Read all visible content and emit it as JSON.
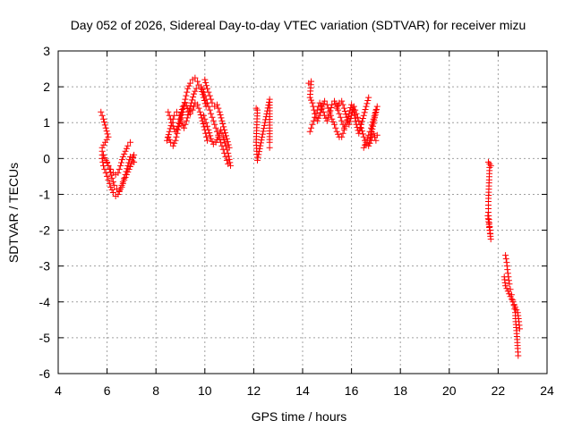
{
  "chart_data": {
    "type": "scatter",
    "title": "Day 052 of 2026, Sidereal Day-to-day VTEC variation (SDTVAR) for receiver mizu",
    "xlabel": "GPS time / hours",
    "ylabel": "SDTVAR / TECUs",
    "xlim": [
      4,
      24
    ],
    "ylim": [
      -6,
      3
    ],
    "xticks": [
      "4",
      "6",
      "8",
      "10",
      "12",
      "14",
      "16",
      "18",
      "20",
      "22",
      "24"
    ],
    "yticks": [
      "3",
      "2",
      "1",
      "0",
      "-1",
      "-2",
      "-3",
      "-4",
      "-5",
      "-6"
    ],
    "grid": true,
    "marker": "+",
    "color": "#ff0000",
    "series": [
      {
        "name": "SDTVAR",
        "segments": [
          [
            [
              5.75,
              1.3
            ],
            [
              5.85,
              1.1
            ],
            [
              5.95,
              0.85
            ],
            [
              6.05,
              0.6
            ],
            [
              5.8,
              0.3
            ],
            [
              5.8,
              0.0
            ],
            [
              5.85,
              -0.2
            ],
            [
              5.95,
              -0.4
            ],
            [
              6.05,
              -0.6
            ],
            [
              6.15,
              -0.8
            ],
            [
              6.25,
              -0.95
            ],
            [
              6.35,
              -1.05
            ],
            [
              6.45,
              -1.0
            ],
            [
              6.55,
              -0.85
            ],
            [
              6.65,
              -0.65
            ],
            [
              6.75,
              -0.45
            ],
            [
              6.85,
              -0.2
            ],
            [
              6.95,
              0.05
            ],
            [
              7.05,
              0.05
            ],
            [
              7.1,
              -0.1
            ]
          ],
          [
            [
              5.85,
              0.1
            ],
            [
              5.95,
              -0.05
            ],
            [
              6.05,
              -0.2
            ],
            [
              6.15,
              -0.3
            ],
            [
              6.25,
              -0.4
            ],
            [
              6.35,
              -0.45
            ],
            [
              6.45,
              -0.4
            ],
            [
              6.55,
              -0.2
            ],
            [
              6.65,
              0.05
            ],
            [
              6.75,
              0.2
            ],
            [
              6.85,
              0.35
            ],
            [
              6.95,
              0.45
            ]
          ],
          [
            [
              6.0,
              -0.1
            ],
            [
              6.1,
              -0.3
            ],
            [
              6.2,
              -0.55
            ],
            [
              6.3,
              -0.75
            ],
            [
              6.4,
              -0.85
            ],
            [
              6.5,
              -0.9
            ],
            [
              6.6,
              -0.8
            ],
            [
              6.7,
              -0.6
            ],
            [
              6.8,
              -0.45
            ],
            [
              6.9,
              -0.3
            ],
            [
              7.0,
              -0.15
            ],
            [
              7.1,
              0.1
            ]
          ],
          [
            [
              8.45,
              0.5
            ],
            [
              8.55,
              0.75
            ],
            [
              8.65,
              1.0
            ],
            [
              8.75,
              1.2
            ],
            [
              8.85,
              1.3
            ],
            [
              8.95,
              1.2
            ],
            [
              9.05,
              1.0
            ],
            [
              9.15,
              0.85
            ],
            [
              9.25,
              1.05
            ],
            [
              9.35,
              1.3
            ],
            [
              9.45,
              1.55
            ],
            [
              9.55,
              1.8
            ],
            [
              9.65,
              1.95
            ],
            [
              9.75,
              2.05
            ],
            [
              9.85,
              1.95
            ],
            [
              9.95,
              1.7
            ],
            [
              10.05,
              1.45
            ]
          ],
          [
            [
              8.5,
              1.3
            ],
            [
              8.6,
              1.1
            ],
            [
              8.7,
              0.9
            ],
            [
              8.8,
              0.75
            ],
            [
              8.9,
              0.9
            ],
            [
              9.0,
              1.2
            ],
            [
              9.1,
              1.45
            ],
            [
              9.2,
              1.55
            ],
            [
              9.3,
              1.4
            ],
            [
              9.4,
              1.25
            ],
            [
              9.5,
              1.35
            ],
            [
              9.6,
              1.55
            ],
            [
              9.7,
              1.5
            ],
            [
              9.8,
              1.3
            ],
            [
              9.9,
              1.05
            ],
            [
              10.0,
              0.8
            ],
            [
              10.1,
              0.5
            ]
          ],
          [
            [
              8.5,
              0.6
            ],
            [
              8.6,
              0.45
            ],
            [
              8.7,
              0.35
            ],
            [
              8.8,
              0.5
            ],
            [
              8.9,
              0.8
            ],
            [
              9.0,
              1.05
            ],
            [
              9.1,
              1.3
            ],
            [
              9.2,
              1.65
            ],
            [
              9.3,
              1.95
            ],
            [
              9.4,
              2.1
            ],
            [
              9.5,
              2.2
            ],
            [
              9.6,
              2.25
            ],
            [
              9.7,
              2.15
            ]
          ],
          [
            [
              9.85,
              2.0
            ],
            [
              9.95,
              1.85
            ],
            [
              10.05,
              1.65
            ],
            [
              10.15,
              1.45
            ],
            [
              10.25,
              1.25
            ],
            [
              10.35,
              1.05
            ],
            [
              10.45,
              0.85
            ],
            [
              10.55,
              0.65
            ],
            [
              10.65,
              0.45
            ],
            [
              10.75,
              0.25
            ],
            [
              10.85,
              0.05
            ],
            [
              10.95,
              -0.15
            ]
          ],
          [
            [
              10.0,
              2.2
            ],
            [
              10.1,
              1.95
            ],
            [
              10.2,
              1.75
            ],
            [
              10.3,
              1.55
            ],
            [
              10.4,
              1.45
            ],
            [
              10.5,
              1.5
            ],
            [
              10.6,
              1.3
            ],
            [
              10.7,
              1.05
            ],
            [
              10.8,
              0.8
            ],
            [
              10.9,
              0.55
            ],
            [
              11.0,
              0.3
            ]
          ],
          [
            [
              9.95,
              1.2
            ],
            [
              10.05,
              1.0
            ],
            [
              10.15,
              0.8
            ],
            [
              10.25,
              0.55
            ],
            [
              10.35,
              0.4
            ],
            [
              10.45,
              0.45
            ],
            [
              10.55,
              0.6
            ],
            [
              10.65,
              0.8
            ],
            [
              10.75,
              0.6
            ],
            [
              10.85,
              0.35
            ],
            [
              10.95,
              0.15
            ],
            [
              11.05,
              -0.2
            ]
          ],
          [
            [
              12.1,
              1.4
            ],
            [
              12.15,
              1.35
            ],
            [
              12.1,
              0.45
            ],
            [
              12.15,
              -0.05
            ],
            [
              12.65,
              1.65
            ],
            [
              12.65,
              0.45
            ],
            [
              12.65,
              0.3
            ]
          ],
          [
            [
              14.25,
              2.1
            ],
            [
              14.35,
              2.15
            ],
            [
              14.3,
              1.7
            ],
            [
              14.4,
              1.55
            ],
            [
              14.5,
              1.25
            ],
            [
              14.6,
              1.05
            ],
            [
              14.7,
              1.2
            ],
            [
              14.8,
              1.45
            ],
            [
              14.9,
              1.6
            ],
            [
              15.0,
              1.5
            ],
            [
              15.1,
              1.3
            ],
            [
              15.2,
              1.1
            ],
            [
              15.3,
              0.95
            ],
            [
              15.4,
              0.75
            ],
            [
              15.5,
              0.6
            ]
          ],
          [
            [
              14.3,
              0.75
            ],
            [
              14.4,
              0.95
            ],
            [
              14.5,
              1.15
            ],
            [
              14.6,
              1.35
            ],
            [
              14.7,
              1.55
            ],
            [
              14.8,
              1.4
            ],
            [
              14.9,
              1.2
            ],
            [
              15.0,
              1.05
            ],
            [
              15.1,
              1.25
            ],
            [
              15.2,
              1.5
            ],
            [
              15.3,
              1.6
            ],
            [
              15.4,
              1.45
            ],
            [
              15.5,
              1.25
            ],
            [
              15.6,
              1.05
            ],
            [
              15.7,
              0.85
            ]
          ],
          [
            [
              15.4,
              1.4
            ],
            [
              15.5,
              1.55
            ],
            [
              15.6,
              1.6
            ],
            [
              15.7,
              1.4
            ],
            [
              15.8,
              1.15
            ],
            [
              15.9,
              0.95
            ],
            [
              16.0,
              1.2
            ],
            [
              16.1,
              1.45
            ],
            [
              16.2,
              1.25
            ],
            [
              16.3,
              1.05
            ],
            [
              16.4,
              0.85
            ],
            [
              16.5,
              0.6
            ],
            [
              16.6,
              0.4
            ]
          ],
          [
            [
              15.6,
              0.6
            ],
            [
              15.7,
              0.8
            ],
            [
              15.8,
              1.0
            ],
            [
              15.9,
              1.25
            ],
            [
              16.0,
              1.5
            ],
            [
              16.1,
              1.3
            ],
            [
              16.2,
              0.95
            ],
            [
              16.3,
              0.7
            ],
            [
              16.4,
              0.95
            ],
            [
              16.5,
              1.2
            ],
            [
              16.6,
              1.45
            ],
            [
              16.7,
              1.7
            ]
          ],
          [
            [
              16.5,
              0.3
            ],
            [
              16.6,
              0.45
            ],
            [
              16.7,
              0.65
            ],
            [
              16.8,
              0.85
            ],
            [
              16.9,
              1.1
            ],
            [
              17.0,
              1.35
            ],
            [
              17.05,
              1.45
            ],
            [
              16.7,
              0.35
            ],
            [
              16.8,
              0.5
            ],
            [
              16.9,
              0.7
            ],
            [
              17.0,
              0.5
            ],
            [
              17.05,
              0.65
            ]
          ],
          [
            [
              21.6,
              -0.1
            ],
            [
              21.65,
              -0.15
            ],
            [
              21.7,
              -0.2
            ],
            [
              21.65,
              -0.25
            ],
            [
              21.6,
              -1.2
            ],
            [
              21.6,
              -1.5
            ],
            [
              21.62,
              -1.7
            ],
            [
              21.65,
              -1.9
            ],
            [
              21.68,
              -2.1
            ],
            [
              21.7,
              -2.25
            ],
            [
              21.58,
              -1.6
            ]
          ],
          [
            [
              22.3,
              -2.7
            ],
            [
              22.35,
              -2.9
            ],
            [
              22.38,
              -3.1
            ],
            [
              22.42,
              -3.3
            ],
            [
              22.46,
              -3.5
            ],
            [
              22.5,
              -3.65
            ],
            [
              22.55,
              -3.8
            ],
            [
              22.6,
              -3.95
            ],
            [
              22.65,
              -4.1
            ],
            [
              22.7,
              -4.3
            ],
            [
              22.72,
              -4.55
            ],
            [
              22.75,
              -4.8
            ],
            [
              22.78,
              -5.05
            ],
            [
              22.8,
              -5.3
            ],
            [
              22.82,
              -5.5
            ]
          ],
          [
            [
              22.25,
              -3.3
            ],
            [
              22.3,
              -3.55
            ],
            [
              22.4,
              -3.7
            ],
            [
              22.5,
              -3.85
            ],
            [
              22.6,
              -4.0
            ],
            [
              22.7,
              -4.15
            ],
            [
              22.8,
              -4.3
            ],
            [
              22.85,
              -4.55
            ],
            [
              22.88,
              -4.75
            ]
          ]
        ]
      }
    ]
  }
}
